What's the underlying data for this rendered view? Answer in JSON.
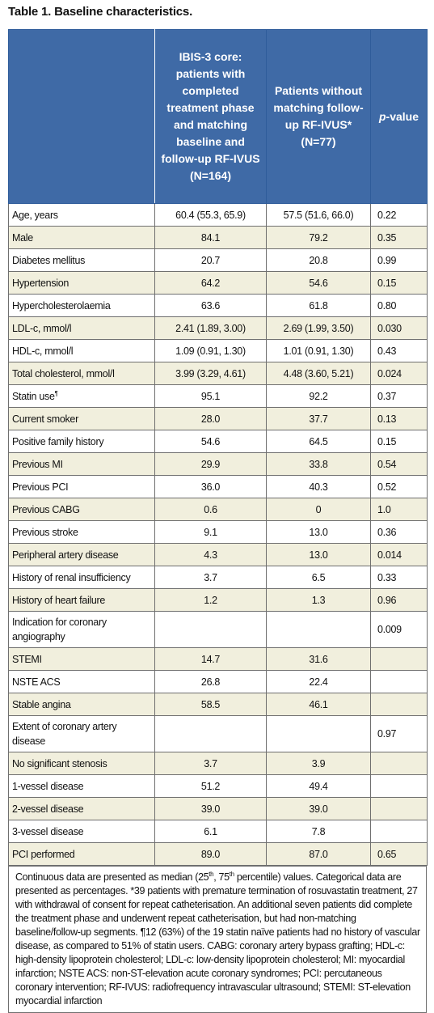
{
  "title": "Table 1. Baseline characteristics.",
  "header": {
    "col1": "",
    "col2": "IBIS-3 core: patients with completed treatment phase and matching baseline and follow-up RF-IVUS (N=164)",
    "col3": "Patients without matching follow-up RF-IVUS* (N=77)",
    "col4_italic": "p",
    "col4_rest": "-value"
  },
  "rows": [
    {
      "label": "Age, years",
      "a": "60.4 (55.3, 65.9)",
      "b": "57.5 (51.6, 66.0)",
      "p": "0.22"
    },
    {
      "label": "Male",
      "a": "84.1",
      "b": "79.2",
      "p": "0.35"
    },
    {
      "label": "Diabetes mellitus",
      "a": "20.7",
      "b": "20.8",
      "p": "0.99"
    },
    {
      "label": "Hypertension",
      "a": "64.2",
      "b": "54.6",
      "p": "0.15"
    },
    {
      "label": "Hypercholesterolaemia",
      "a": "63.6",
      "b": "61.8",
      "p": "0.80"
    },
    {
      "label": "LDL-c, mmol/l",
      "a": "2.41 (1.89, 3.00)",
      "b": "2.69 (1.99, 3.50)",
      "p": "0.030"
    },
    {
      "label": "HDL-c, mmol/l",
      "a": "1.09 (0.91, 1.30)",
      "b": "1.01 (0.91, 1.30)",
      "p": "0.43"
    },
    {
      "label": "Total cholesterol, mmol/l",
      "a": "3.99 (3.29, 4.61)",
      "b": "4.48 (3.60, 5.21)",
      "p": "0.024"
    },
    {
      "label": "Statin use",
      "sup": "¶",
      "a": "95.1",
      "b": "92.2",
      "p": "0.37"
    },
    {
      "label": "Current smoker",
      "a": "28.0",
      "b": "37.7",
      "p": "0.13"
    },
    {
      "label": "Positive family history",
      "a": "54.6",
      "b": "64.5",
      "p": "0.15"
    },
    {
      "label": "Previous MI",
      "a": "29.9",
      "b": "33.8",
      "p": "0.54"
    },
    {
      "label": "Previous PCI",
      "a": "36.0",
      "b": "40.3",
      "p": "0.52"
    },
    {
      "label": "Previous CABG",
      "a": "0.6",
      "b": "0",
      "p": "1.0"
    },
    {
      "label": "Previous stroke",
      "a": "9.1",
      "b": "13.0",
      "p": "0.36"
    },
    {
      "label": "Peripheral artery disease",
      "a": "4.3",
      "b": "13.0",
      "p": "0.014"
    },
    {
      "label": "History of renal insufficiency",
      "a": "3.7",
      "b": "6.5",
      "p": "0.33"
    },
    {
      "label": "History of heart failure",
      "a": "1.2",
      "b": "1.3",
      "p": "0.96"
    },
    {
      "label": "Indication for coronary angiography",
      "a": "",
      "b": "",
      "p": "0.009",
      "tall": true
    },
    {
      "label": "STEMI",
      "a": "14.7",
      "b": "31.6",
      "p": ""
    },
    {
      "label": "NSTE ACS",
      "a": "26.8",
      "b": "22.4",
      "p": ""
    },
    {
      "label": "Stable angina",
      "a": "58.5",
      "b": "46.1",
      "p": ""
    },
    {
      "label": "Extent of coronary artery disease",
      "a": "",
      "b": "",
      "p": "0.97",
      "tall": true
    },
    {
      "label": "No significant stenosis",
      "a": "3.7",
      "b": "3.9",
      "p": ""
    },
    {
      "label": "1-vessel disease",
      "a": "51.2",
      "b": "49.4",
      "p": ""
    },
    {
      "label": "2-vessel disease",
      "a": "39.0",
      "b": "39.0",
      "p": ""
    },
    {
      "label": "3-vessel disease",
      "a": "6.1",
      "b": "7.8",
      "p": ""
    },
    {
      "label": "PCI performed",
      "a": "89.0",
      "b": "87.0",
      "p": "0.65"
    }
  ],
  "footnote": {
    "p1": "Continuous data are presented as median (25",
    "sup1": "th",
    "p2": ", 75",
    "sup2": "th",
    "p3": " percentile) values. Categorical data are presented as percentages. *39 patients with premature termination of rosuvastatin treatment, 27 with withdrawal of consent for repeat catheterisation. An additional seven patients did complete the treatment phase and underwent repeat catheterisation, but had non-matching baseline/follow-up segments. ¶12 (63%) of the 19 statin naïve patients had no history of vascular disease, as compared to 51% of statin users. CABG: coronary artery bypass grafting; HDL-c: high-density lipoprotein cholesterol; LDL-c: low-density lipoprotein cholesterol; MI: myocardial infarction; NSTE ACS: non-ST-elevation acute coronary syndromes; PCI: percutaneous coronary intervention; RF-IVUS: radiofrequency intravascular ultrasound; STEMI: ST-elevation myocardial infarction"
  }
}
